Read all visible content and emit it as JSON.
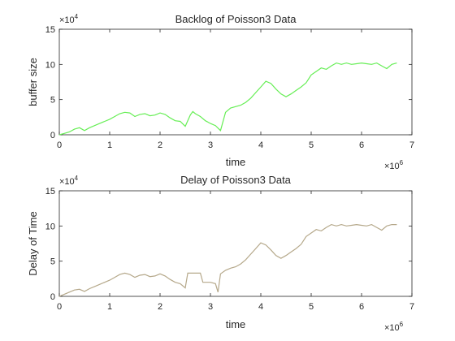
{
  "chart_data": [
    {
      "type": "line",
      "title": "Backlog of Poisson3 Data",
      "xlabel": "time",
      "ylabel": "buffer size",
      "x_exponent": "×10^6",
      "y_exponent": "×10^4",
      "xlim": [
        0,
        7
      ],
      "ylim": [
        0,
        15
      ],
      "xticks": [
        "0",
        "1",
        "2",
        "3",
        "4",
        "5",
        "6",
        "7"
      ],
      "yticks": [
        "0",
        "5",
        "10",
        "15"
      ],
      "grid": false,
      "line_color": "#66ee55",
      "series": [
        {
          "x": [
            0.0,
            0.1,
            0.2,
            0.3,
            0.4,
            0.5,
            0.6,
            0.7,
            0.8,
            0.9,
            1.0,
            1.1,
            1.2,
            1.3,
            1.4,
            1.5,
            1.6,
            1.7,
            1.8,
            1.9,
            2.0,
            2.1,
            2.2,
            2.3,
            2.4,
            2.5,
            2.6,
            2.65,
            2.7,
            2.8,
            2.9,
            3.0,
            3.1,
            3.2,
            3.3,
            3.4,
            3.5,
            3.6,
            3.7,
            3.8,
            3.9,
            4.0,
            4.1,
            4.2,
            4.3,
            4.4,
            4.5,
            4.6,
            4.7,
            4.8,
            4.9,
            5.0,
            5.1,
            5.2,
            5.3,
            5.4,
            5.5,
            5.6,
            5.7,
            5.8,
            5.9,
            6.0,
            6.1,
            6.2,
            6.3,
            6.4,
            6.5,
            6.6,
            6.7
          ],
          "y": [
            0.0,
            0.2,
            0.4,
            0.8,
            1.0,
            0.6,
            1.0,
            1.3,
            1.6,
            1.9,
            2.2,
            2.6,
            3.0,
            3.2,
            3.1,
            2.6,
            2.9,
            3.0,
            2.7,
            2.8,
            3.1,
            2.9,
            2.4,
            2.0,
            1.9,
            1.2,
            2.8,
            3.3,
            3.0,
            2.6,
            2.0,
            1.6,
            1.3,
            0.6,
            3.2,
            3.8,
            4.0,
            4.2,
            4.6,
            5.2,
            6.0,
            6.8,
            7.6,
            7.3,
            6.5,
            5.8,
            5.4,
            5.8,
            6.3,
            6.8,
            7.4,
            8.5,
            9.0,
            9.5,
            9.3,
            9.8,
            10.2,
            10.0,
            10.2,
            10.0,
            10.1,
            10.2,
            10.1,
            10.0,
            10.2,
            9.8,
            9.4,
            10.0,
            10.2
          ]
        }
      ]
    },
    {
      "type": "line",
      "title": "Delay of Poisson3 Data",
      "xlabel": "time",
      "ylabel": "Delay of Time",
      "x_exponent": "×10^6",
      "y_exponent": "×10^4",
      "xlim": [
        0,
        7
      ],
      "ylim": [
        0,
        15
      ],
      "xticks": [
        "0",
        "1",
        "2",
        "3",
        "4",
        "5",
        "6",
        "7"
      ],
      "yticks": [
        "0",
        "5",
        "10",
        "15"
      ],
      "grid": false,
      "line_color": "#b5a88a",
      "series": [
        {
          "x": [
            0.0,
            0.1,
            0.2,
            0.3,
            0.4,
            0.5,
            0.6,
            0.7,
            0.8,
            0.9,
            1.0,
            1.1,
            1.2,
            1.3,
            1.4,
            1.5,
            1.6,
            1.7,
            1.8,
            1.9,
            2.0,
            2.1,
            2.2,
            2.3,
            2.4,
            2.5,
            2.55,
            2.6,
            2.65,
            2.7,
            2.8,
            2.85,
            2.9,
            3.0,
            3.1,
            3.15,
            3.2,
            3.3,
            3.4,
            3.5,
            3.6,
            3.7,
            3.8,
            3.9,
            4.0,
            4.1,
            4.2,
            4.3,
            4.4,
            4.5,
            4.6,
            4.7,
            4.8,
            4.9,
            5.0,
            5.1,
            5.2,
            5.3,
            5.4,
            5.5,
            5.6,
            5.7,
            5.8,
            5.9,
            6.0,
            6.1,
            6.2,
            6.3,
            6.4,
            6.5,
            6.6,
            6.7
          ],
          "y": [
            0.0,
            0.3,
            0.6,
            0.9,
            1.0,
            0.7,
            1.1,
            1.4,
            1.7,
            2.0,
            2.3,
            2.7,
            3.1,
            3.3,
            3.1,
            2.7,
            3.0,
            3.1,
            2.8,
            2.9,
            3.2,
            2.9,
            2.4,
            2.0,
            1.8,
            1.2,
            3.3,
            3.3,
            3.3,
            3.3,
            3.3,
            2.0,
            2.0,
            2.0,
            1.8,
            0.6,
            3.2,
            3.7,
            4.0,
            4.2,
            4.6,
            5.2,
            6.0,
            6.8,
            7.6,
            7.3,
            6.6,
            5.8,
            5.4,
            5.8,
            6.3,
            6.8,
            7.4,
            8.5,
            9.0,
            9.5,
            9.3,
            9.8,
            10.2,
            10.0,
            10.2,
            10.0,
            10.1,
            10.2,
            10.1,
            10.0,
            10.2,
            9.8,
            9.4,
            10.0,
            10.2,
            10.2
          ]
        }
      ]
    }
  ]
}
